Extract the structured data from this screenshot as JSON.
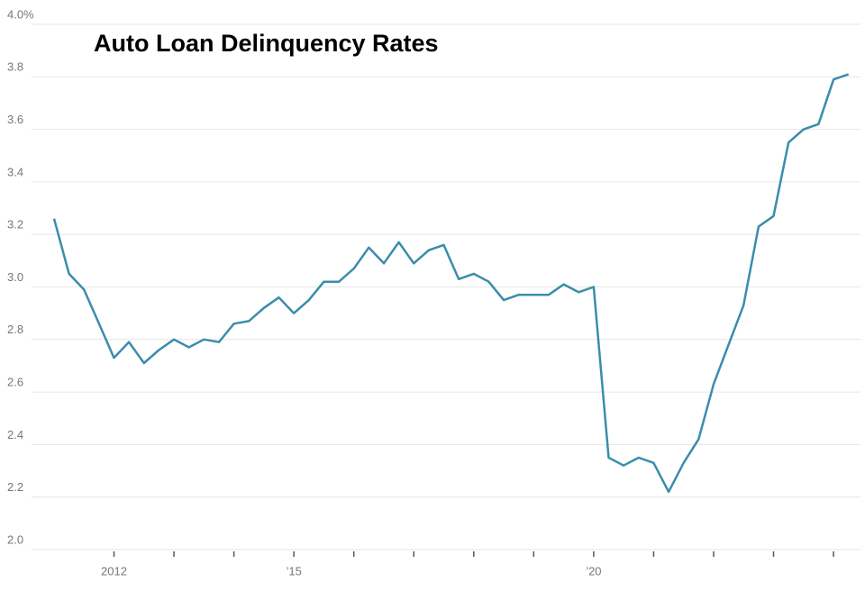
{
  "chart_data": {
    "type": "line",
    "title": "Auto Loan Delinquency Rates",
    "x": [
      2011,
      2011.25,
      2011.5,
      2011.75,
      2012,
      2012.25,
      2012.5,
      2012.75,
      2013,
      2013.25,
      2013.5,
      2013.75,
      2014,
      2014.25,
      2014.5,
      2014.75,
      2015,
      2015.25,
      2015.5,
      2015.75,
      2016,
      2016.25,
      2016.5,
      2016.75,
      2017,
      2017.25,
      2017.5,
      2017.75,
      2018,
      2018.25,
      2018.5,
      2018.75,
      2019,
      2019.25,
      2019.5,
      2019.75,
      2020,
      2020.25,
      2020.5,
      2020.75,
      2021,
      2021.25,
      2021.5,
      2021.75,
      2022,
      2022.25,
      2022.5,
      2022.75,
      2023,
      2023.25,
      2023.5,
      2023.75,
      2024,
      2024.25
    ],
    "values": [
      3.26,
      3.05,
      2.99,
      2.86,
      2.73,
      2.79,
      2.71,
      2.76,
      2.8,
      2.77,
      2.8,
      2.79,
      2.86,
      2.87,
      2.92,
      2.96,
      2.9,
      2.95,
      3.02,
      3.02,
      3.07,
      3.15,
      3.09,
      3.17,
      3.09,
      3.14,
      3.16,
      3.03,
      3.05,
      3.02,
      2.95,
      2.97,
      2.97,
      2.97,
      3.01,
      2.98,
      3.0,
      2.35,
      2.32,
      2.35,
      2.33,
      2.22,
      2.33,
      2.42,
      2.63,
      2.78,
      2.93,
      3.23,
      3.27,
      3.55,
      3.6,
      3.62,
      3.79,
      3.81
    ],
    "color": "#3a8dab",
    "xlim": [
      2010.7,
      2024.45
    ],
    "xticks": [
      {
        "value": 2012,
        "label": "2012"
      },
      {
        "value": 2015,
        "label": "’15"
      },
      {
        "value": 2020,
        "label": "’20"
      }
    ],
    "xminorticks": [
      2013,
      2014,
      2016,
      2017,
      2018,
      2019,
      2021,
      2022,
      2023,
      2024
    ],
    "ylim": [
      2,
      4
    ],
    "yticks": [
      {
        "value": 2,
        "label": "2.0"
      },
      2.2,
      2.4,
      2.6,
      2.8,
      {
        "value": 3,
        "label": "3.0"
      },
      3.2,
      3.4,
      3.6,
      3.8,
      {
        "value": 4,
        "label": "4.0%"
      }
    ],
    "grid": true
  }
}
